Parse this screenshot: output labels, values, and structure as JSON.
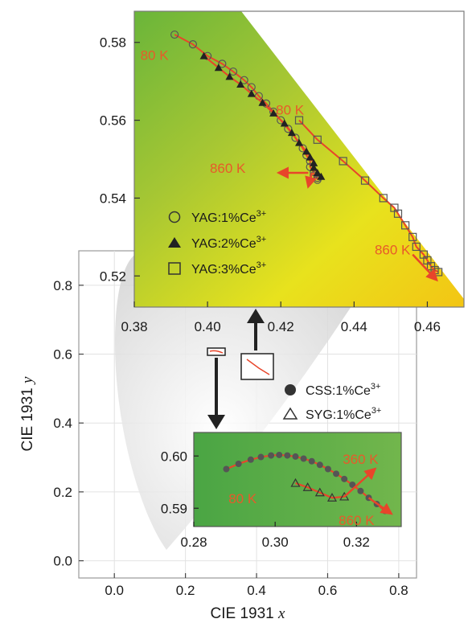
{
  "chart_data": [
    {
      "name": "main",
      "type": "scatter",
      "xlabel": "CIE 1931 x",
      "ylabel": "CIE 1931 y",
      "xlim": [
        -0.1,
        0.85
      ],
      "ylim": [
        -0.05,
        0.9
      ],
      "xticks": [
        "0.0",
        "0.2",
        "0.4",
        "0.6",
        "0.8"
      ],
      "yticks": [
        "0.0",
        "0.2",
        "0.4",
        "0.6",
        "0.8"
      ],
      "grid": true,
      "legend": [
        {
          "label": "CSS:1%Ce",
          "sup": "3+",
          "marker": "filled-circle"
        },
        {
          "label": "SYG:1%Ce",
          "sup": "3+",
          "marker": "open-triangle"
        }
      ],
      "zoom_boxes": [
        {
          "x": [
            0.28,
            0.33
          ],
          "y": [
            0.585,
            0.605
          ]
        },
        {
          "x": [
            0.38,
            0.47
          ],
          "y": [
            0.51,
            0.59
          ]
        }
      ]
    },
    {
      "name": "inset-yag",
      "type": "scatter",
      "xlim": [
        0.38,
        0.47
      ],
      "ylim": [
        0.512,
        0.588
      ],
      "xticks": [
        "0.38",
        "0.40",
        "0.42",
        "0.44",
        "0.46"
      ],
      "yticks": [
        "0.52",
        "0.54",
        "0.56",
        "0.58"
      ],
      "legend_position": "bottom-left",
      "series": [
        {
          "name": "YAG:1%Ce",
          "sup": "3+",
          "marker": "open-circle",
          "x": [
            0.391,
            0.396,
            0.4,
            0.404,
            0.407,
            0.41,
            0.412,
            0.414,
            0.416,
            0.418,
            0.42,
            0.422,
            0.424,
            0.426,
            0.427,
            0.428,
            0.428,
            0.429,
            0.429,
            0.43,
            0.43
          ],
          "y": [
            0.582,
            0.5795,
            0.5765,
            0.5745,
            0.5725,
            0.5703,
            0.5685,
            0.5662,
            0.5643,
            0.5622,
            0.56,
            0.5578,
            0.5555,
            0.5528,
            0.551,
            0.5495,
            0.548,
            0.5467,
            0.5458,
            0.5452,
            0.5447
          ]
        },
        {
          "name": "YAG:2%Ce",
          "sup": "3+",
          "marker": "filled-triangle",
          "x": [
            0.399,
            0.403,
            0.406,
            0.409,
            0.412,
            0.415,
            0.418,
            0.421,
            0.423,
            0.425,
            0.427,
            0.428,
            0.429,
            0.429,
            0.43,
            0.431
          ],
          "y": [
            0.5765,
            0.5735,
            0.5712,
            0.5692,
            0.5668,
            0.5645,
            0.5618,
            0.5592,
            0.5568,
            0.5542,
            0.552,
            0.5505,
            0.549,
            0.5478,
            0.5465,
            0.5455
          ]
        },
        {
          "name": "YAG:3%Ce",
          "sup": "3+",
          "marker": "open-square",
          "x": [
            0.425,
            0.43,
            0.437,
            0.443,
            0.448,
            0.451,
            0.452,
            0.454,
            0.456,
            0.457,
            0.459,
            0.46,
            0.461,
            0.462,
            0.463
          ],
          "y": [
            0.56,
            0.555,
            0.5495,
            0.5445,
            0.54,
            0.5375,
            0.536,
            0.533,
            0.53,
            0.5275,
            0.5255,
            0.524,
            0.5225,
            0.5215,
            0.521
          ]
        }
      ],
      "annotations": [
        {
          "text": "80 K",
          "at": [
            0.3855,
            0.5755
          ]
        },
        {
          "text": "80 K",
          "at": [
            0.4225,
            0.5615
          ]
        },
        {
          "text": "860 K",
          "at": [
            0.4055,
            0.5465
          ]
        },
        {
          "text": "860 K",
          "at": [
            0.4505,
            0.5255
          ]
        }
      ]
    },
    {
      "name": "inset-css",
      "type": "scatter",
      "xlim": [
        0.28,
        0.331
      ],
      "ylim": [
        0.5865,
        0.6045
      ],
      "xticks": [
        "0.28",
        "0.30",
        "0.32"
      ],
      "yticks": [
        "0.59",
        "0.60"
      ],
      "series": [
        {
          "name": "CSS:1%Ce",
          "sup": "3+",
          "marker": "filled-circle",
          "x": [
            0.288,
            0.291,
            0.294,
            0.2965,
            0.299,
            0.301,
            0.303,
            0.305,
            0.307,
            0.309,
            0.311,
            0.313,
            0.315,
            0.317,
            0.319,
            0.321,
            0.323,
            0.325,
            0.327
          ],
          "y": [
            0.5975,
            0.5985,
            0.5993,
            0.5998,
            0.6001,
            0.6002,
            0.6001,
            0.5999,
            0.5995,
            0.599,
            0.5983,
            0.5975,
            0.5966,
            0.5956,
            0.5945,
            0.5933,
            0.592,
            0.5908,
            0.5895
          ]
        },
        {
          "name": "SYG:1%Ce",
          "sup": "3+",
          "marker": "open-triangle",
          "x": [
            0.305,
            0.308,
            0.311,
            0.314,
            0.317
          ],
          "y": [
            0.5948,
            0.594,
            0.593,
            0.592,
            0.5922
          ]
        }
      ],
      "annotations": [
        {
          "text": "360 K",
          "at": [
            0.321,
            0.5985
          ]
        },
        {
          "text": "80 K",
          "at": [
            0.292,
            0.591
          ]
        },
        {
          "text": "860 K",
          "at": [
            0.32,
            0.5868
          ]
        }
      ]
    }
  ]
}
